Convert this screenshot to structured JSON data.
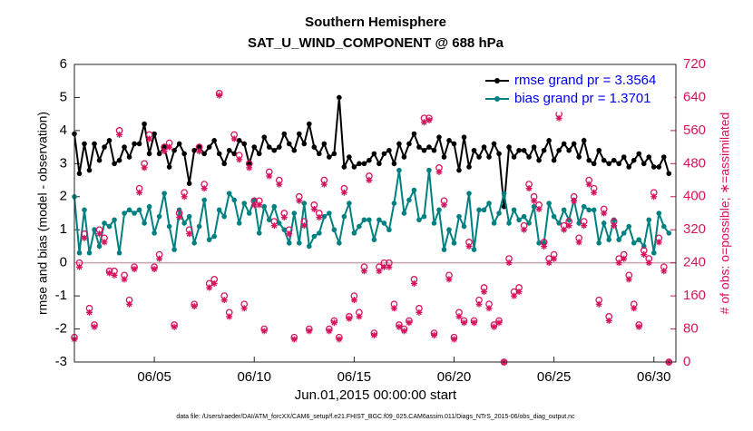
{
  "chart_data": {
    "type": "line",
    "title": "Southern Hemisphere",
    "subtitle": "SAT_U_WIND_COMPONENT @ 688 hPa",
    "xlabel": "Jun.01,2015 00:00:00 start",
    "ylabel": "rmse and bias (model - observation)",
    "y2label": "# of obs: o=possible; ∗=assimilated",
    "footnote": "data file: /Users/raeder/DAI/ATM_forcXX/CAM6_setup/f.e21.FHIST_BGC.f09_025.CAM6assim.011/Diags_NTrS_2015-06/obs_diag_output.nc",
    "legend": "top-right",
    "xlim": [
      1,
      31.1
    ],
    "xticks": [
      {
        "value": 5,
        "label": "06/05"
      },
      {
        "value": 10,
        "label": "06/10"
      },
      {
        "value": 15,
        "label": "06/15"
      },
      {
        "value": 20,
        "label": "06/20"
      },
      {
        "value": 25,
        "label": "06/25"
      },
      {
        "value": 30,
        "label": "06/30"
      }
    ],
    "ylim": [
      -3,
      6
    ],
    "yticks": [
      -3,
      -2,
      -1,
      0,
      1,
      2,
      3,
      4,
      5,
      6
    ],
    "y2lim": [
      0,
      720
    ],
    "y2ticks": [
      0,
      80,
      160,
      240,
      320,
      400,
      480,
      560,
      640,
      720
    ],
    "x": [
      1,
      1.25,
      1.5,
      1.75,
      2,
      2.25,
      2.5,
      2.75,
      3,
      3.25,
      3.5,
      3.75,
      4,
      4.25,
      4.5,
      4.75,
      5,
      5.25,
      5.5,
      5.75,
      6,
      6.25,
      6.5,
      6.75,
      7,
      7.25,
      7.5,
      7.75,
      8,
      8.25,
      8.5,
      8.75,
      9,
      9.25,
      9.5,
      9.75,
      10,
      10.25,
      10.5,
      10.75,
      11,
      11.25,
      11.5,
      11.75,
      12,
      12.25,
      12.5,
      12.75,
      13,
      13.25,
      13.5,
      13.75,
      14,
      14.25,
      14.5,
      14.75,
      15,
      15.25,
      15.5,
      15.75,
      16,
      16.25,
      16.5,
      16.75,
      17,
      17.25,
      17.5,
      17.75,
      18,
      18.25,
      18.5,
      18.75,
      19,
      19.25,
      19.5,
      19.75,
      20,
      20.25,
      20.5,
      20.75,
      21,
      21.25,
      21.5,
      21.75,
      22,
      22.25,
      22.5,
      22.75,
      23,
      23.25,
      23.5,
      23.75,
      24,
      24.25,
      24.5,
      24.75,
      25,
      25.25,
      25.5,
      25.75,
      26,
      26.25,
      26.5,
      26.75,
      27,
      27.25,
      27.5,
      27.75,
      28,
      28.25,
      28.5,
      28.75,
      29,
      29.25,
      29.5,
      29.75,
      30,
      30.25,
      30.5,
      30.75
    ],
    "series": [
      {
        "name": "rmse grand pr = 3.3564",
        "color": "#000000",
        "values": [
          3.9,
          2.7,
          3.6,
          2.8,
          3.6,
          3.1,
          3.5,
          3.7,
          3.0,
          3.1,
          3.5,
          3.2,
          3.6,
          3.6,
          4.2,
          3.3,
          3.9,
          3.3,
          3.5,
          2.9,
          3.4,
          3.6,
          3.3,
          2.4,
          3.4,
          3.5,
          3.3,
          3.5,
          3.7,
          3.3,
          3.0,
          3.4,
          3.3,
          3.7,
          3.6,
          3.0,
          3.5,
          3.3,
          3.8,
          3.5,
          3.4,
          3.5,
          3.9,
          3.6,
          3.4,
          3.9,
          3.6,
          4.2,
          3.5,
          3.3,
          3.6,
          3.2,
          3.3,
          5.0,
          2.9,
          3.2,
          2.9,
          3.0,
          3.0,
          3.1,
          3.3,
          3.0,
          3.3,
          3.4,
          3.0,
          3.6,
          3.2,
          3.6,
          3.9,
          3.5,
          3.4,
          3.5,
          3.4,
          3.8,
          3.2,
          3.7,
          3.6,
          2.8,
          3.8,
          2.9,
          3.4,
          3.2,
          3.5,
          3.2,
          3.6,
          3.3,
          1.7,
          3.5,
          3.2,
          3.4,
          3.4,
          3.2,
          3.5,
          3.1,
          3.4,
          3.7,
          3.1,
          3.4,
          3.6,
          3.4,
          3.6,
          3.2,
          3.7,
          3.1,
          3.0,
          3.4,
          3.1,
          3.0,
          3.1,
          3.0,
          3.2,
          2.9,
          3.1,
          3.3,
          3.0,
          3.2,
          2.9,
          2.9,
          3.2,
          2.7
        ]
      },
      {
        "name": "bias grand pr = 1.3701",
        "color": "#008080",
        "values": [
          2.0,
          0.3,
          1.6,
          0.3,
          1.0,
          0.5,
          1.2,
          1.1,
          1.3,
          0.3,
          1.5,
          1.6,
          1.5,
          1.6,
          1.2,
          1.7,
          0.9,
          1.4,
          2.1,
          1.1,
          0.4,
          1.6,
          1.2,
          1.4,
          0.6,
          1.1,
          1.9,
          0.7,
          0.8,
          1.6,
          1.4,
          2.1,
          1.9,
          1.2,
          1.8,
          1.5,
          1.9,
          0.9,
          1.7,
          1.3,
          1.7,
          1.2,
          1.0,
          0.6,
          1.5,
          0.6,
          1.8,
          0.5,
          0.8,
          0.9,
          1.4,
          1.5,
          1.0,
          0.6,
          1.4,
          1.8,
          0.9,
          1.1,
          1.3,
          1.3,
          0.7,
          1.3,
          1.2,
          1.0,
          1.8,
          2.8,
          1.5,
          1.9,
          2.2,
          1.3,
          1.4,
          2.8,
          1.2,
          1.6,
          0.4,
          1.0,
          0.6,
          1.4,
          1.1,
          2.1,
          0.4,
          1.6,
          1.6,
          1.8,
          1.2,
          1.5,
          2.1,
          1.2,
          1.6,
          1.3,
          1.4,
          1.2,
          1.7,
          0.6,
          0.6,
          1.8,
          1.4,
          1.2,
          1.6,
          1.3,
          1.9,
          1.2,
          1.7,
          1.6,
          1.6,
          0.6,
          1.2,
          0.7,
          1.3,
          0.7,
          0.9,
          1.1,
          0.6,
          0.7,
          0.5,
          1.3,
          0.3,
          1.5,
          1.1,
          0.9
        ]
      },
      {
        "color": "#d6135e",
        "marker": "o",
        "axis": "y2",
        "values": [
          60,
          240,
          310,
          130,
          90,
          320,
          300,
          220,
          220,
          560,
          210,
          150,
          230,
          420,
          480,
          550,
          230,
          260,
          520,
          530,
          90,
          360,
          410,
          320,
          140,
          520,
          430,
          190,
          200,
          650,
          160,
          120,
          550,
          500,
          140,
          480,
          390,
          390,
          80,
          460,
          340,
          440,
          360,
          320,
          60,
          400,
          340,
          80,
          380,
          360,
          440,
          80,
          100,
          60,
          420,
          110,
          160,
          120,
          230,
          450,
          70,
          230,
          240,
          240,
          140,
          90,
          80,
          100,
          200,
          130,
          590,
          590,
          70,
          470,
          390,
          210,
          60,
          120,
          100,
          290,
          100,
          150,
          180,
          140,
          90,
          100,
          0,
          250,
          170,
          180,
          330,
          430,
          400,
          380,
          290,
          250,
          260,
          600,
          330,
          340,
          400,
          300,
          340,
          440,
          420,
          150,
          370,
          110,
          340,
          250,
          260,
          210,
          140,
          90,
          270,
          250,
          410,
          300,
          230,
          0
        ]
      },
      {
        "color": "#d6135e",
        "marker": "*",
        "axis": "y2",
        "values": [
          55,
          230,
          300,
          120,
          85,
          310,
          290,
          215,
          210,
          550,
          200,
          140,
          225,
          410,
          470,
          540,
          225,
          250,
          510,
          520,
          85,
          350,
          400,
          310,
          135,
          510,
          420,
          180,
          190,
          645,
          150,
          110,
          540,
          490,
          130,
          470,
          380,
          380,
          75,
          450,
          330,
          430,
          350,
          310,
          55,
          390,
          330,
          75,
          370,
          350,
          430,
          75,
          95,
          55,
          410,
          105,
          150,
          110,
          220,
          440,
          65,
          220,
          230,
          230,
          130,
          85,
          75,
          95,
          190,
          120,
          580,
          585,
          65,
          460,
          380,
          200,
          55,
          110,
          95,
          280,
          95,
          140,
          170,
          130,
          85,
          95,
          0,
          240,
          160,
          170,
          320,
          420,
          390,
          370,
          280,
          240,
          250,
          590,
          320,
          330,
          390,
          290,
          330,
          430,
          410,
          140,
          360,
          100,
          330,
          240,
          250,
          200,
          130,
          85,
          260,
          240,
          400,
          290,
          220,
          0
        ]
      }
    ]
  }
}
